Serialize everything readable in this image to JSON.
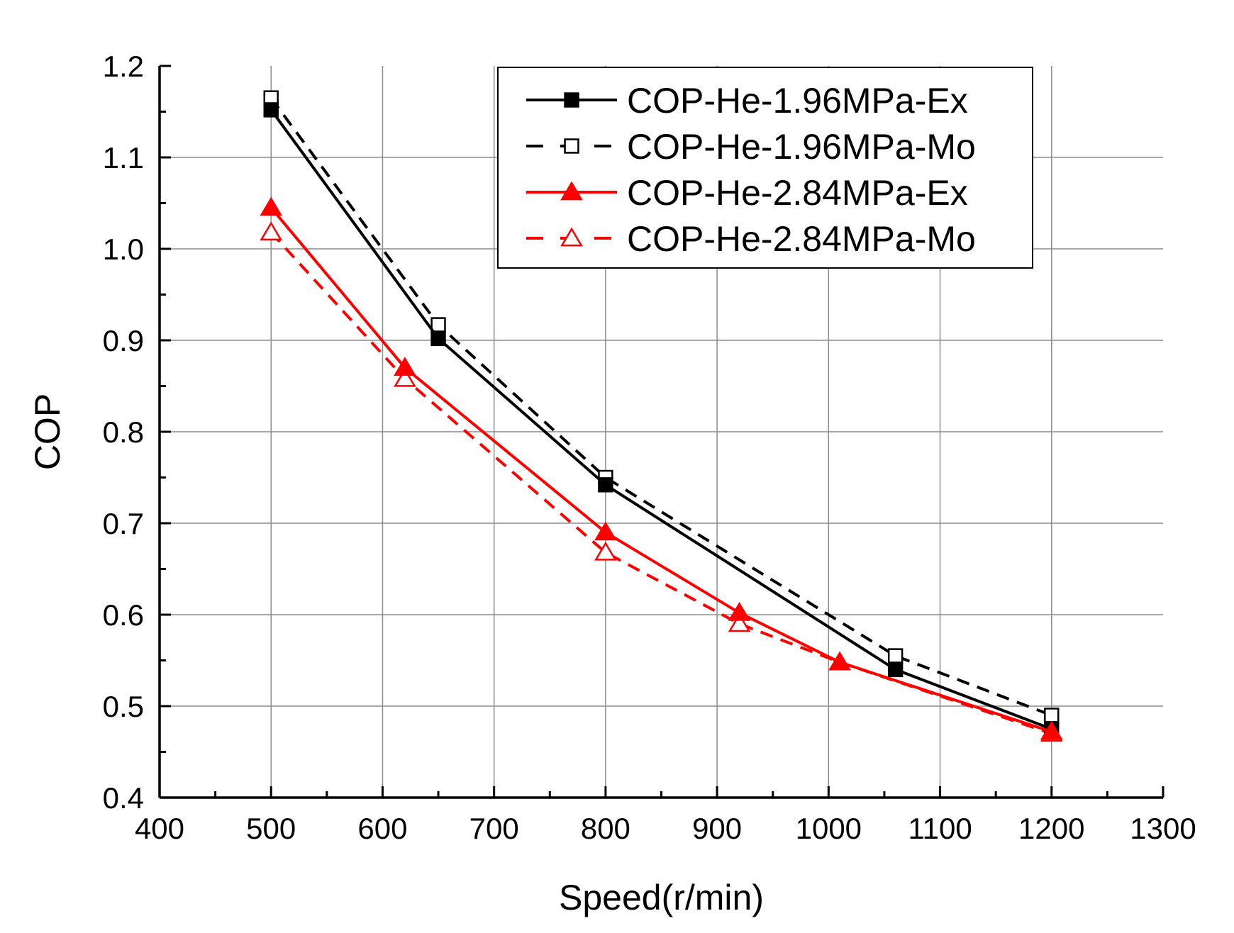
{
  "chart_data": {
    "type": "line",
    "title": "",
    "xlabel": "Speed(r/min)",
    "ylabel": "COP",
    "xlim": [
      400,
      1300
    ],
    "ylim": [
      0.4,
      1.2
    ],
    "xticks": [
      400,
      500,
      600,
      700,
      800,
      900,
      1000,
      1100,
      1200,
      1300
    ],
    "xtick_labels": [
      "400",
      "500",
      "600",
      "700",
      "800",
      "900",
      "1000",
      "1100",
      "1200",
      "1300"
    ],
    "yticks": [
      0.4,
      0.5,
      0.6,
      0.7,
      0.8,
      0.9,
      1.0,
      1.1,
      1.2
    ],
    "ytick_labels": [
      "0.4",
      "0.5",
      "0.6",
      "0.7",
      "0.8",
      "0.9",
      "1.0",
      "1.1",
      "1.2"
    ],
    "grid": true,
    "legend_position": "top-right",
    "series": [
      {
        "name": "COP-He-1.96MPa-Ex",
        "color": "#000000",
        "line_style": "solid",
        "marker": "filled-square",
        "x": [
          500,
          650,
          800,
          1060,
          1200
        ],
        "y": [
          1.152,
          0.902,
          0.742,
          0.54,
          0.475
        ]
      },
      {
        "name": "COP-He-1.96MPa-Mo",
        "color": "#000000",
        "line_style": "dashed",
        "marker": "open-square",
        "x": [
          500,
          650,
          800,
          1060,
          1200
        ],
        "y": [
          1.165,
          0.917,
          0.75,
          0.555,
          0.49
        ]
      },
      {
        "name": "COP-He-2.84MPa-Ex",
        "color": "#ff0000",
        "line_style": "solid",
        "marker": "filled-triangle",
        "x": [
          500,
          620,
          800,
          920,
          1010,
          1200
        ],
        "y": [
          1.045,
          0.87,
          0.69,
          0.602,
          0.548,
          0.472
        ]
      },
      {
        "name": "COP-He-2.84MPa-Mo",
        "color": "#ff0000",
        "line_style": "dashed",
        "marker": "open-triangle",
        "x": [
          500,
          620,
          800,
          920,
          1010,
          1200
        ],
        "y": [
          1.018,
          0.858,
          0.668,
          0.59,
          0.548,
          0.47
        ]
      }
    ]
  }
}
